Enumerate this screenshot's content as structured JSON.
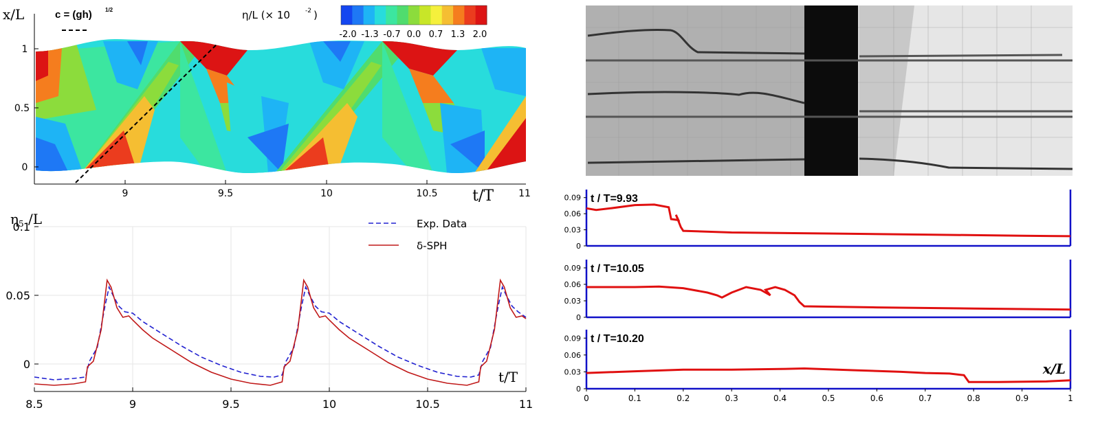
{
  "contour_panel": {
    "ylabel": "x/L",
    "xlabel": "t/T",
    "yticks": [
      "0",
      "0.5",
      "1"
    ],
    "xticks": [
      "9",
      "9.5",
      "10",
      "10.5",
      "11"
    ],
    "celerity_label": "c = (gh)",
    "celerity_exp": "1/2",
    "colorbar_title": "η/L (× 10",
    "colorbar_exp": "-2",
    "colorbar_close": ")",
    "colorbar_ticks": [
      "-2.0",
      "-1.3",
      "-0.7",
      "0.0",
      "0.7",
      "1.3",
      "2.0"
    ],
    "colorbar_colors": [
      "#1446f0",
      "#1e78f5",
      "#1eb4f5",
      "#28dcdc",
      "#3ce6a0",
      "#50dc6e",
      "#8cdc3c",
      "#c8e628",
      "#f5f03c",
      "#f5be32",
      "#f57d1e",
      "#eb3c1e",
      "#dc1414"
    ]
  },
  "photos": {
    "description_hidden": ""
  },
  "profiles": {
    "xlabel": "x/L",
    "yticks": [
      "0",
      "0.03",
      "0.06",
      "0.09"
    ],
    "xticks": [
      "0",
      "0.1",
      "0.2",
      "0.3",
      "0.4",
      "0.5",
      "0.6",
      "0.7",
      "0.8",
      "0.9",
      "1"
    ],
    "labels": [
      "t / T=9.93",
      "t / T=10.05",
      "t / T=10.20"
    ]
  },
  "chart_data": [
    {
      "type": "line",
      "title": "",
      "ylabel": "η5 /L",
      "ylabel_main": "η",
      "ylabel_sub": "5",
      "ylabel_rest": " /L",
      "xlabel": "t/T",
      "xlim": [
        8.5,
        11
      ],
      "ylim": [
        -0.02,
        0.1
      ],
      "xticks": [
        "8.5",
        "9",
        "9.5",
        "10",
        "10.5",
        "11"
      ],
      "yticks": [
        "0",
        "0.05",
        "0.1"
      ],
      "legend": [
        "Exp. Data",
        "δ-SPH"
      ],
      "series": [
        {
          "name": "Exp. Data",
          "color": "#2020d0",
          "dash": true,
          "points": [
            [
              8.5,
              -0.0095
            ],
            [
              8.6,
              -0.0115
            ],
            [
              8.7,
              -0.0105
            ],
            [
              8.76,
              -0.0095
            ],
            [
              8.78,
              0.002
            ],
            [
              8.82,
              0.012
            ],
            [
              8.86,
              0.043
            ],
            [
              8.88,
              0.056
            ],
            [
              8.9,
              0.05
            ],
            [
              8.93,
              0.042
            ],
            [
              8.96,
              0.038
            ],
            [
              9.0,
              0.037
            ],
            [
              9.05,
              0.031
            ],
            [
              9.15,
              0.022
            ],
            [
              9.25,
              0.013
            ],
            [
              9.35,
              0.005
            ],
            [
              9.45,
              -0.001
            ],
            [
              9.55,
              -0.006
            ],
            [
              9.65,
              -0.009
            ],
            [
              9.72,
              -0.0095
            ],
            [
              9.76,
              -0.008
            ],
            [
              9.78,
              0.002
            ],
            [
              9.82,
              0.012
            ],
            [
              9.86,
              0.043
            ],
            [
              9.88,
              0.056
            ],
            [
              9.9,
              0.05
            ],
            [
              9.93,
              0.042
            ],
            [
              9.96,
              0.038
            ],
            [
              10.0,
              0.037
            ],
            [
              10.05,
              0.031
            ],
            [
              10.15,
              0.022
            ],
            [
              10.25,
              0.013
            ],
            [
              10.35,
              0.005
            ],
            [
              10.45,
              -0.001
            ],
            [
              10.55,
              -0.006
            ],
            [
              10.65,
              -0.009
            ],
            [
              10.72,
              -0.0095
            ],
            [
              10.76,
              -0.008
            ],
            [
              10.78,
              0.002
            ],
            [
              10.82,
              0.012
            ],
            [
              10.86,
              0.043
            ],
            [
              10.88,
              0.056
            ],
            [
              10.9,
              0.05
            ],
            [
              10.93,
              0.042
            ],
            [
              10.96,
              0.038
            ],
            [
              11.0,
              0.034
            ]
          ]
        },
        {
          "name": "δ-SPH",
          "color": "#c01818",
          "dash": false,
          "points": [
            [
              8.5,
              -0.0145
            ],
            [
              8.6,
              -0.0155
            ],
            [
              8.7,
              -0.0145
            ],
            [
              8.76,
              -0.013
            ],
            [
              8.77,
              -0.002
            ],
            [
              8.8,
              0.002
            ],
            [
              8.84,
              0.025
            ],
            [
              8.87,
              0.061
            ],
            [
              8.89,
              0.056
            ],
            [
              8.92,
              0.041
            ],
            [
              8.95,
              0.034
            ],
            [
              8.98,
              0.035
            ],
            [
              9.0,
              0.032
            ],
            [
              9.05,
              0.025
            ],
            [
              9.1,
              0.019
            ],
            [
              9.2,
              0.01
            ],
            [
              9.3,
              0.001
            ],
            [
              9.4,
              -0.006
            ],
            [
              9.5,
              -0.011
            ],
            [
              9.6,
              -0.014
            ],
            [
              9.7,
              -0.0155
            ],
            [
              9.76,
              -0.013
            ],
            [
              9.77,
              -0.002
            ],
            [
              9.8,
              0.002
            ],
            [
              9.84,
              0.025
            ],
            [
              9.87,
              0.061
            ],
            [
              9.89,
              0.056
            ],
            [
              9.92,
              0.041
            ],
            [
              9.95,
              0.034
            ],
            [
              9.98,
              0.035
            ],
            [
              10.0,
              0.032
            ],
            [
              10.05,
              0.025
            ],
            [
              10.1,
              0.019
            ],
            [
              10.2,
              0.01
            ],
            [
              10.3,
              0.001
            ],
            [
              10.4,
              -0.006
            ],
            [
              10.5,
              -0.011
            ],
            [
              10.6,
              -0.014
            ],
            [
              10.7,
              -0.0155
            ],
            [
              10.76,
              -0.013
            ],
            [
              10.77,
              -0.002
            ],
            [
              10.8,
              0.002
            ],
            [
              10.84,
              0.025
            ],
            [
              10.87,
              0.061
            ],
            [
              10.89,
              0.056
            ],
            [
              10.92,
              0.041
            ],
            [
              10.95,
              0.034
            ],
            [
              10.98,
              0.035
            ],
            [
              11.0,
              0.033
            ]
          ]
        }
      ]
    }
  ]
}
